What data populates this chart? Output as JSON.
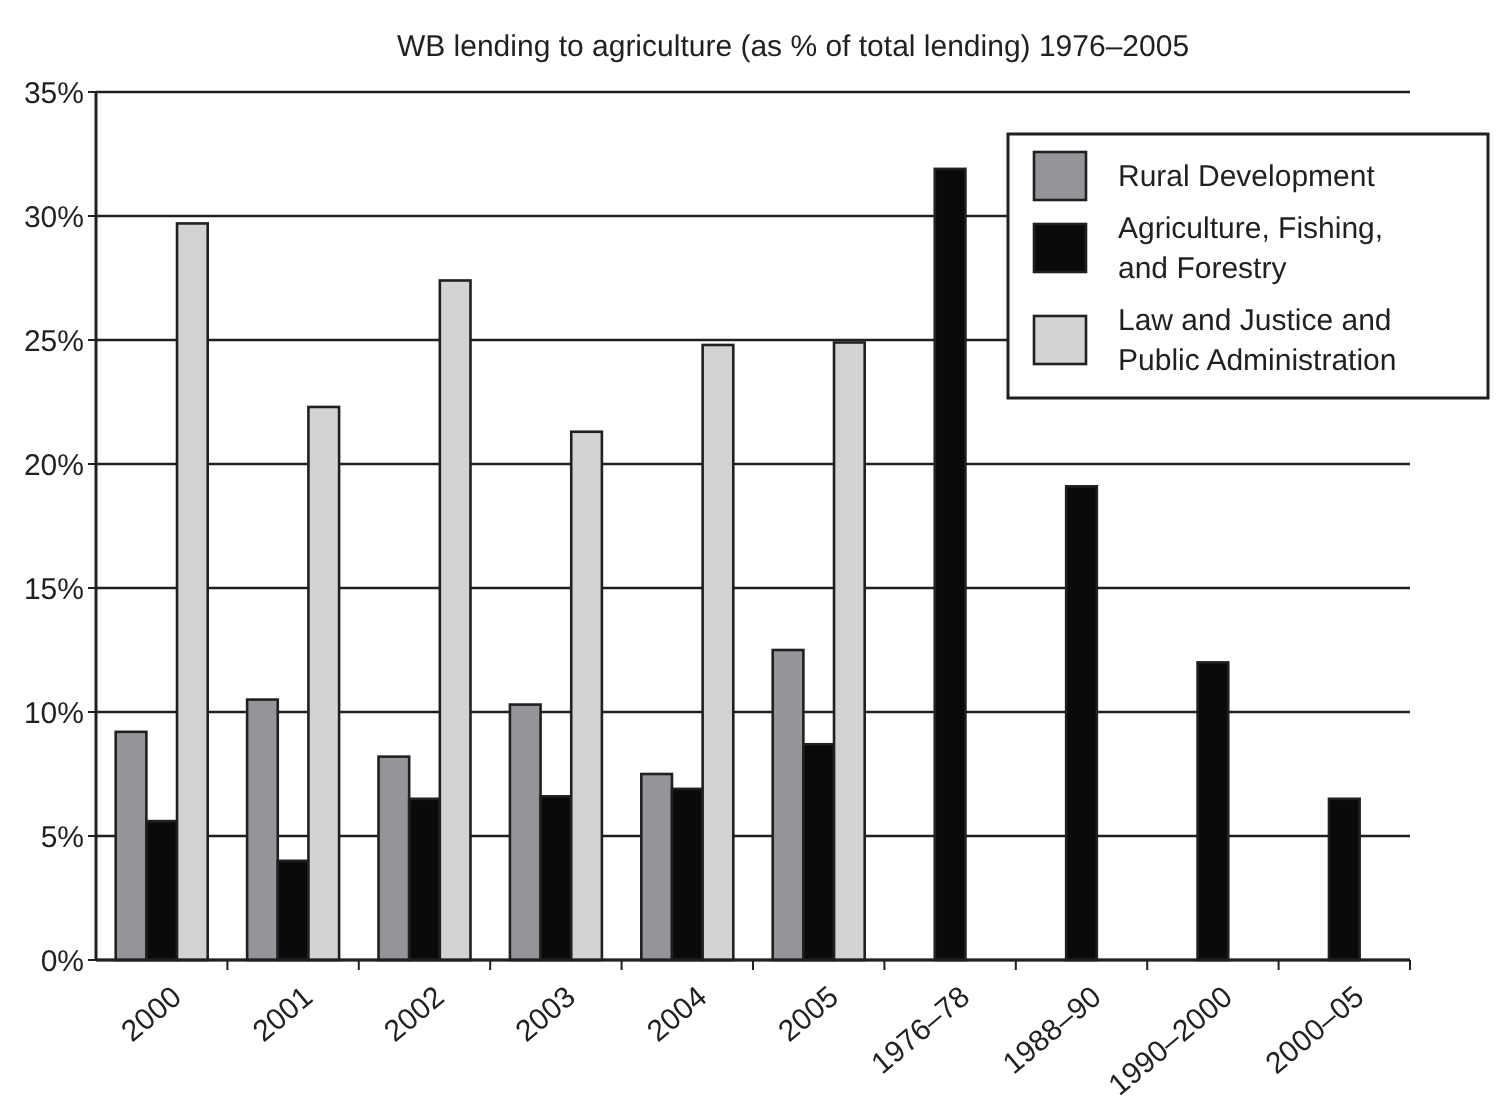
{
  "chart_data": {
    "type": "bar",
    "title": "WB lending to agriculture (as % of total lending) 1976–2005",
    "categories": [
      "2000",
      "2001",
      "2002",
      "2003",
      "2004",
      "2005",
      "1976–78",
      "1988–90",
      "1990–2000",
      "2000–05"
    ],
    "series": [
      {
        "name": "Rural Development",
        "color": "#939598",
        "values": [
          9.2,
          10.5,
          8.2,
          10.3,
          7.5,
          12.5,
          null,
          null,
          null,
          null
        ]
      },
      {
        "name": "Agriculture, Fishing, and Forestry",
        "color": "#0a0a0a",
        "values": [
          5.6,
          4.0,
          6.5,
          6.6,
          6.9,
          8.7,
          31.9,
          19.1,
          12.0,
          6.5
        ]
      },
      {
        "name": "Law and Justice and Public Administration",
        "color": "#d1d3d4",
        "values": [
          29.7,
          22.3,
          27.4,
          21.3,
          24.8,
          24.9,
          null,
          null,
          null,
          null
        ]
      }
    ],
    "ylim": [
      0,
      35
    ],
    "yticks": [
      {
        "value": 0,
        "label": "0%"
      },
      {
        "value": 5,
        "label": "5%"
      },
      {
        "value": 10,
        "label": "10%"
      },
      {
        "value": 15,
        "label": "15%"
      },
      {
        "value": 20,
        "label": "20%"
      },
      {
        "value": 25,
        "label": "25%"
      },
      {
        "value": 30,
        "label": "30%"
      },
      {
        "value": 35,
        "label": "35%"
      }
    ],
    "grid": "y",
    "legend": "top right"
  }
}
